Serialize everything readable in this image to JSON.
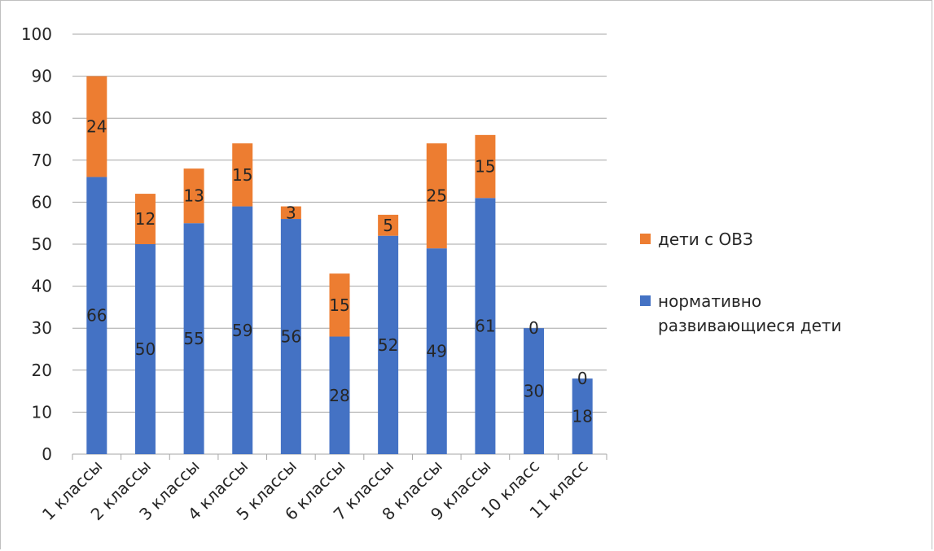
{
  "chart_data": {
    "type": "bar",
    "stacked": true,
    "categories": [
      "1 классы",
      "2 классы",
      "3 классы",
      "4 классы",
      "5 классы",
      "6 классы",
      "7 классы",
      "8 классы",
      "9 классы",
      "10 класс",
      "11 класс"
    ],
    "series": [
      {
        "name": "нормативно развивающиеся дети",
        "values": [
          66,
          50,
          55,
          59,
          56,
          28,
          52,
          49,
          61,
          30,
          18
        ],
        "color": "#4472c4"
      },
      {
        "name": "дети с ОВЗ",
        "values": [
          24,
          12,
          13,
          15,
          3,
          15,
          5,
          25,
          15,
          0,
          0
        ],
        "color": "#ed7d31"
      }
    ],
    "ylim": [
      0,
      100
    ],
    "yticks": [
      0,
      10,
      20,
      30,
      40,
      50,
      60,
      70,
      80,
      90,
      100
    ],
    "grid": true,
    "legend_position": "right"
  },
  "legend": {
    "ovz": "дети с ОВЗ",
    "norm": "нормативно развивающиеся дети"
  }
}
